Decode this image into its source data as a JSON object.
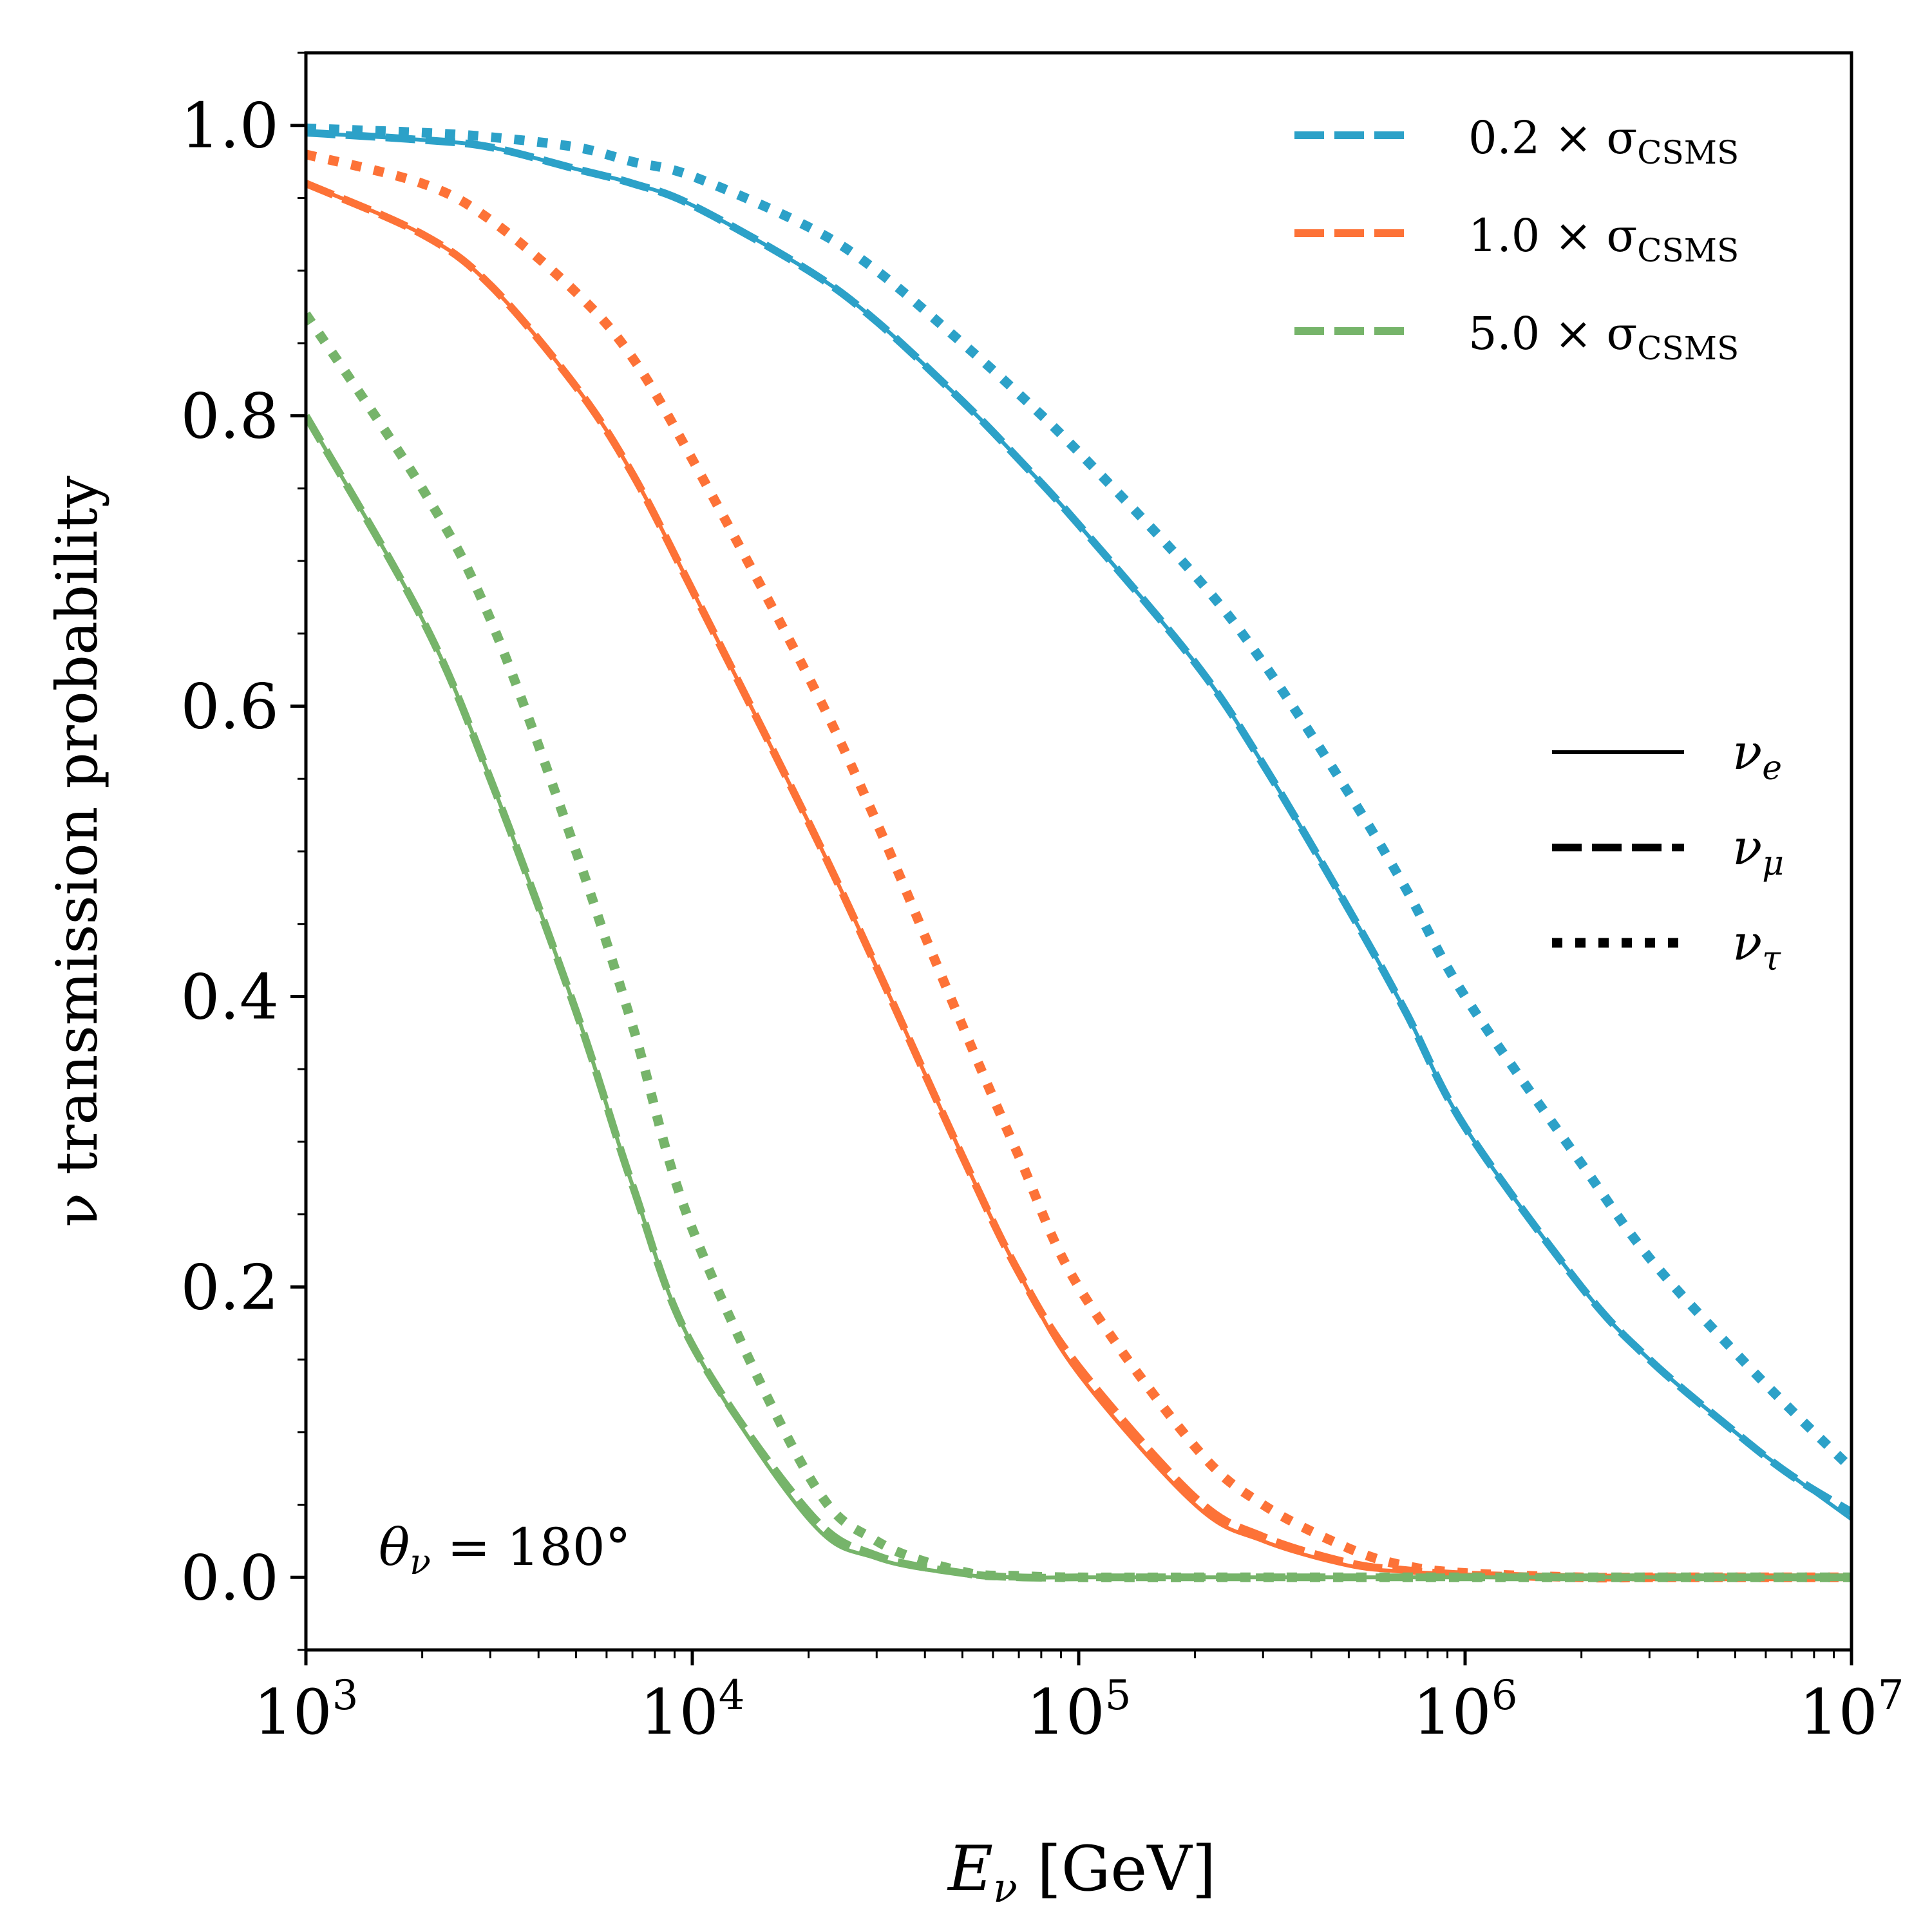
{
  "chart_data": {
    "type": "line",
    "xlabel": "E_ν [GeV]",
    "xlabel_main": "E",
    "xlabel_sub": "ν",
    "xlabel_unit": " [GeV]",
    "ylabel": "ν transmission probability",
    "xscale": "log",
    "xlim": [
      1000,
      10000000
    ],
    "ylim": [
      -0.05,
      1.05
    ],
    "x_ticks": [
      {
        "value": 1000,
        "base": "10",
        "exp": "3"
      },
      {
        "value": 10000,
        "base": "10",
        "exp": "4"
      },
      {
        "value": 100000,
        "base": "10",
        "exp": "5"
      },
      {
        "value": 1000000,
        "base": "10",
        "exp": "6"
      },
      {
        "value": 10000000,
        "base": "10",
        "exp": "7"
      }
    ],
    "y_ticks": [
      {
        "value": 0.0,
        "label": "0.0"
      },
      {
        "value": 0.2,
        "label": "0.2"
      },
      {
        "value": 0.4,
        "label": "0.4"
      },
      {
        "value": 0.6,
        "label": "0.6"
      },
      {
        "value": 0.8,
        "label": "0.8"
      },
      {
        "value": 1.0,
        "label": "1.0"
      }
    ],
    "grid": false,
    "annotation": {
      "symbol": "θ",
      "sub": "ν",
      "text": " = 180°"
    },
    "legend_cross_section": {
      "placement": "top-right",
      "entries": [
        {
          "label": "0.2 × σ",
          "sub": "CSMS",
          "color": "#2ca1c8"
        },
        {
          "label": "1.0 × σ",
          "sub": "CSMS",
          "color": "#fd7237"
        },
        {
          "label": "5.0 × σ",
          "sub": "CSMS",
          "color": "#76b46a"
        }
      ]
    },
    "legend_flavor": {
      "placement": "center-right",
      "entries": [
        {
          "symbol": "ν",
          "sub": "e",
          "style": "solid"
        },
        {
          "symbol": "ν",
          "sub": "μ",
          "style": "dashed"
        },
        {
          "symbol": "ν",
          "sub": "τ",
          "style": "dotted"
        }
      ]
    },
    "x": [
      1000,
      2000,
      3000,
      5000,
      7000,
      10000,
      20000,
      30000,
      50000,
      70000,
      100000,
      200000,
      300000,
      500000,
      700000,
      1000000,
      2000000,
      3000000,
      5000000,
      7000000,
      10000000
    ],
    "series": [
      {
        "group": "0.2 × σCSMS",
        "flavor": "ν_e",
        "color": "#2ca1c8",
        "style": "solid",
        "values": [
          0.995,
          0.99,
          0.985,
          0.97,
          0.96,
          0.945,
          0.9,
          0.865,
          0.81,
          0.77,
          0.725,
          0.63,
          0.56,
          0.46,
          0.39,
          0.31,
          0.2,
          0.15,
          0.1,
          0.07,
          0.04
        ]
      },
      {
        "group": "0.2 × σCSMS",
        "flavor": "ν_μ",
        "color": "#2ca1c8",
        "style": "dashed",
        "values": [
          0.995,
          0.99,
          0.985,
          0.97,
          0.96,
          0.945,
          0.9,
          0.865,
          0.81,
          0.77,
          0.725,
          0.63,
          0.56,
          0.46,
          0.39,
          0.31,
          0.2,
          0.15,
          0.1,
          0.07,
          0.045
        ]
      },
      {
        "group": "0.2 × σCSMS",
        "flavor": "ν_τ",
        "color": "#2ca1c8",
        "style": "dotted",
        "values": [
          0.998,
          0.995,
          0.992,
          0.985,
          0.975,
          0.965,
          0.93,
          0.9,
          0.85,
          0.815,
          0.775,
          0.69,
          0.63,
          0.54,
          0.475,
          0.4,
          0.285,
          0.22,
          0.155,
          0.115,
          0.075
        ]
      },
      {
        "group": "1.0 × σCSMS",
        "flavor": "ν_e",
        "color": "#fd7237",
        "style": "solid",
        "values": [
          0.96,
          0.925,
          0.89,
          0.82,
          0.76,
          0.68,
          0.52,
          0.42,
          0.29,
          0.21,
          0.14,
          0.05,
          0.025,
          0.008,
          0.004,
          0.002,
          0.0,
          0.0,
          0.0,
          0.0,
          0.0
        ]
      },
      {
        "group": "1.0 × σCSMS",
        "flavor": "ν_μ",
        "color": "#fd7237",
        "style": "dashed",
        "values": [
          0.96,
          0.925,
          0.89,
          0.82,
          0.76,
          0.68,
          0.52,
          0.42,
          0.29,
          0.21,
          0.145,
          0.055,
          0.028,
          0.01,
          0.005,
          0.002,
          0.0,
          0.0,
          0.0,
          0.0,
          0.0
        ]
      },
      {
        "group": "1.0 × σCSMS",
        "flavor": "ν_τ",
        "color": "#fd7237",
        "style": "dotted",
        "values": [
          0.98,
          0.96,
          0.935,
          0.885,
          0.84,
          0.77,
          0.62,
          0.52,
          0.38,
          0.29,
          0.2,
          0.09,
          0.05,
          0.02,
          0.008,
          0.003,
          0.0,
          0.0,
          0.0,
          0.0,
          0.0
        ]
      },
      {
        "group": "5.0 × σCSMS",
        "flavor": "ν_e",
        "color": "#76b46a",
        "style": "solid",
        "values": [
          0.8,
          0.66,
          0.55,
          0.39,
          0.27,
          0.16,
          0.04,
          0.013,
          0.002,
          0.0,
          0.0,
          0.0,
          0.0,
          0.0,
          0.0,
          0.0,
          0.0,
          0.0,
          0.0,
          0.0,
          0.0
        ]
      },
      {
        "group": "5.0 × σCSMS",
        "flavor": "ν_μ",
        "color": "#76b46a",
        "style": "dashed",
        "values": [
          0.8,
          0.66,
          0.55,
          0.39,
          0.27,
          0.16,
          0.045,
          0.015,
          0.003,
          0.0,
          0.0,
          0.0,
          0.0,
          0.0,
          0.0,
          0.0,
          0.0,
          0.0,
          0.0,
          0.0,
          0.0
        ]
      },
      {
        "group": "5.0 × σCSMS",
        "flavor": "ν_τ",
        "color": "#76b46a",
        "style": "dotted",
        "values": [
          0.87,
          0.75,
          0.66,
          0.5,
          0.38,
          0.24,
          0.07,
          0.025,
          0.004,
          0.001,
          0.0,
          0.0,
          0.0,
          0.0,
          0.0,
          0.0,
          0.0,
          0.0,
          0.0,
          0.0,
          0.0
        ]
      }
    ]
  }
}
